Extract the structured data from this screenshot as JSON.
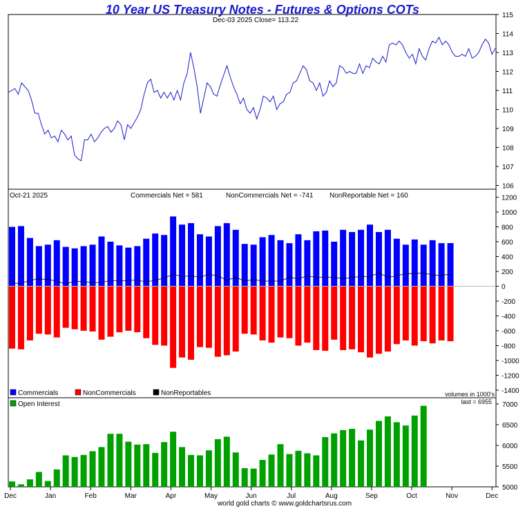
{
  "header": {
    "title": "10 Year US Treasury Notes - Futures & Options COTs",
    "subtitle": "Dec-03  2025   Close= 113.22",
    "credit": "world gold charts © www.goldchartsrus.com"
  },
  "colors": {
    "title": "#1a1acc",
    "price_line": "#1a1acc",
    "commercials": "#0000ff",
    "noncommercials": "#ff0000",
    "nonreportables": "#000000",
    "open_interest": "#00a000"
  },
  "chart_data": [
    {
      "type": "line",
      "name": "price",
      "ylim": [
        105.8,
        115
      ],
      "yticks": [
        106,
        107,
        108,
        109,
        110,
        111,
        112,
        113,
        114,
        115
      ],
      "points": [
        [
          0,
          110.9
        ],
        [
          1,
          111.0
        ],
        [
          2,
          111.1
        ],
        [
          3,
          110.8
        ],
        [
          4,
          111.4
        ],
        [
          5,
          111.2
        ],
        [
          6,
          111.0
        ],
        [
          7,
          110.5
        ],
        [
          8,
          109.8
        ],
        [
          9,
          109.8
        ],
        [
          10,
          109.2
        ],
        [
          11,
          108.7
        ],
        [
          12,
          108.9
        ],
        [
          13,
          108.5
        ],
        [
          14,
          108.6
        ],
        [
          15,
          108.3
        ],
        [
          16,
          108.9
        ],
        [
          17,
          108.7
        ],
        [
          18,
          108.4
        ],
        [
          19,
          108.6
        ],
        [
          20,
          107.6
        ],
        [
          21,
          107.4
        ],
        [
          22,
          107.3
        ],
        [
          23,
          108.4
        ],
        [
          24,
          108.4
        ],
        [
          25,
          108.7
        ],
        [
          26,
          108.3
        ],
        [
          27,
          108.5
        ],
        [
          28,
          108.8
        ],
        [
          29,
          109.0
        ],
        [
          30,
          109.1
        ],
        [
          31,
          108.8
        ],
        [
          32,
          109.0
        ],
        [
          33,
          109.4
        ],
        [
          34,
          109.2
        ],
        [
          35,
          108.4
        ],
        [
          36,
          109.2
        ],
        [
          37,
          109.0
        ],
        [
          38,
          109.3
        ],
        [
          39,
          109.6
        ],
        [
          40,
          110.0
        ],
        [
          41,
          110.8
        ],
        [
          42,
          111.4
        ],
        [
          43,
          111.6
        ],
        [
          44,
          110.9
        ],
        [
          45,
          111.0
        ],
        [
          46,
          110.6
        ],
        [
          47,
          110.9
        ],
        [
          48,
          110.6
        ],
        [
          49,
          110.9
        ],
        [
          50,
          110.5
        ],
        [
          51,
          111.0
        ],
        [
          52,
          110.5
        ],
        [
          53,
          111.4
        ],
        [
          54,
          111.9
        ],
        [
          55,
          113.0
        ],
        [
          56,
          112.2
        ],
        [
          57,
          111.2
        ],
        [
          58,
          109.8
        ],
        [
          59,
          110.6
        ],
        [
          60,
          111.4
        ],
        [
          61,
          111.2
        ],
        [
          62,
          110.8
        ],
        [
          63,
          110.7
        ],
        [
          64,
          111.3
        ],
        [
          65,
          111.8
        ],
        [
          66,
          112.3
        ],
        [
          67,
          111.7
        ],
        [
          68,
          111.2
        ],
        [
          69,
          110.8
        ],
        [
          70,
          110.3
        ],
        [
          71,
          110.6
        ],
        [
          72,
          110.0
        ],
        [
          73,
          109.8
        ],
        [
          74,
          110.1
        ],
        [
          75,
          109.5
        ],
        [
          76,
          110.0
        ],
        [
          77,
          110.7
        ],
        [
          78,
          110.6
        ],
        [
          79,
          110.4
        ],
        [
          80,
          110.7
        ],
        [
          81,
          110.0
        ],
        [
          82,
          110.3
        ],
        [
          83,
          110.4
        ],
        [
          84,
          110.8
        ],
        [
          85,
          110.9
        ],
        [
          86,
          111.4
        ],
        [
          87,
          111.5
        ],
        [
          88,
          111.9
        ],
        [
          89,
          112.3
        ],
        [
          90,
          112.1
        ],
        [
          91,
          111.5
        ],
        [
          92,
          111.4
        ],
        [
          93,
          111.0
        ],
        [
          94,
          111.4
        ],
        [
          95,
          110.7
        ],
        [
          96,
          110.9
        ],
        [
          97,
          111.5
        ],
        [
          98,
          111.2
        ],
        [
          99,
          111.4
        ],
        [
          100,
          112.3
        ],
        [
          101,
          112.2
        ],
        [
          102,
          111.9
        ],
        [
          103,
          112.0
        ],
        [
          104,
          111.9
        ],
        [
          105,
          111.9
        ],
        [
          106,
          112.4
        ],
        [
          107,
          111.9
        ],
        [
          108,
          112.3
        ],
        [
          109,
          112.2
        ],
        [
          110,
          112.7
        ],
        [
          111,
          112.5
        ],
        [
          112,
          112.4
        ],
        [
          113,
          112.8
        ],
        [
          114,
          112.5
        ],
        [
          115,
          113.4
        ],
        [
          116,
          113.5
        ],
        [
          117,
          113.4
        ],
        [
          118,
          113.6
        ],
        [
          119,
          113.4
        ],
        [
          120,
          113.0
        ],
        [
          121,
          112.7
        ],
        [
          122,
          112.9
        ],
        [
          123,
          112.4
        ],
        [
          124,
          113.2
        ],
        [
          125,
          112.8
        ],
        [
          126,
          112.6
        ],
        [
          127,
          113.2
        ],
        [
          128,
          113.6
        ],
        [
          129,
          113.5
        ],
        [
          130,
          113.8
        ],
        [
          131,
          113.4
        ],
        [
          132,
          113.6
        ],
        [
          133,
          113.4
        ],
        [
          134,
          113.0
        ],
        [
          135,
          112.8
        ],
        [
          136,
          112.8
        ],
        [
          137,
          112.9
        ],
        [
          138,
          112.8
        ],
        [
          139,
          113.2
        ],
        [
          140,
          112.7
        ],
        [
          141,
          112.8
        ],
        [
          142,
          113.0
        ],
        [
          143,
          113.4
        ],
        [
          144,
          113.7
        ],
        [
          145,
          113.5
        ],
        [
          146,
          112.9
        ],
        [
          147,
          113.22
        ]
      ]
    },
    {
      "type": "bar",
      "name": "cot-net",
      "date_label": "Oct-21  2025",
      "labels": [
        {
          "key": "commercials",
          "text": "Commercials Net = 581"
        },
        {
          "key": "noncommercials",
          "text": "NonCommercials Net = -741"
        },
        {
          "key": "nonreportables",
          "text": "NonReportable Net = 160"
        }
      ],
      "legend": [
        "Commercials",
        "NonCommercials",
        "NonReportables"
      ],
      "ylim": [
        -1400,
        1200
      ],
      "yticks": [
        -1400,
        -1200,
        -1000,
        -800,
        -600,
        -400,
        -200,
        0,
        200,
        400,
        600,
        800,
        1000,
        1200
      ],
      "commercials": [
        800,
        810,
        650,
        540,
        560,
        620,
        530,
        510,
        540,
        560,
        670,
        600,
        550,
        520,
        540,
        640,
        710,
        690,
        940,
        830,
        850,
        700,
        670,
        810,
        850,
        760,
        570,
        560,
        660,
        690,
        620,
        580,
        700,
        620,
        740,
        750,
        600,
        760,
        730,
        760,
        830,
        730,
        760,
        640,
        560,
        630,
        560,
        620,
        580,
        581
      ],
      "noncommercials": [
        -840,
        -850,
        -730,
        -640,
        -650,
        -690,
        -560,
        -580,
        -600,
        -610,
        -720,
        -680,
        -620,
        -600,
        -620,
        -700,
        -790,
        -800,
        -1100,
        -960,
        -990,
        -820,
        -830,
        -950,
        -930,
        -880,
        -640,
        -650,
        -730,
        -760,
        -690,
        -700,
        -800,
        -760,
        -860,
        -870,
        -720,
        -860,
        -850,
        -890,
        -960,
        -910,
        -880,
        -780,
        -730,
        -800,
        -740,
        -770,
        -730,
        -741
      ],
      "nonreportables": [
        40,
        40,
        80,
        100,
        90,
        70,
        30,
        70,
        60,
        50,
        50,
        80,
        70,
        80,
        80,
        60,
        80,
        110,
        160,
        130,
        140,
        120,
        160,
        140,
        80,
        120,
        70,
        90,
        70,
        70,
        70,
        120,
        100,
        140,
        120,
        120,
        120,
        100,
        120,
        130,
        130,
        180,
        120,
        140,
        170,
        170,
        180,
        150,
        150,
        160
      ]
    },
    {
      "type": "bar",
      "name": "open-interest",
      "series_name": "Open Interest",
      "unit_note": "volumes in 1000's",
      "last_label": "last = 6955",
      "ylim": [
        5000,
        7150
      ],
      "yticks": [
        5000,
        5500,
        6000,
        6500,
        7000
      ],
      "values": [
        5130,
        5060,
        5180,
        5360,
        5140,
        5420,
        5760,
        5720,
        5770,
        5860,
        5960,
        6280,
        6280,
        6090,
        6020,
        6030,
        5820,
        6080,
        6330,
        5960,
        5770,
        5760,
        5880,
        6150,
        6210,
        5830,
        5450,
        5440,
        5650,
        5780,
        6030,
        5790,
        5870,
        5810,
        5760,
        6200,
        6290,
        6370,
        6400,
        6120,
        6380,
        6590,
        6700,
        6560,
        6480,
        6720,
        6955
      ]
    },
    {
      "type": "axis",
      "name": "months",
      "months": [
        "Dec",
        "Jan",
        "Feb",
        "Mar",
        "Apr",
        "May",
        "Jun",
        "Jul",
        "Aug",
        "Sep",
        "Oct",
        "Nov",
        "Dec"
      ]
    }
  ]
}
